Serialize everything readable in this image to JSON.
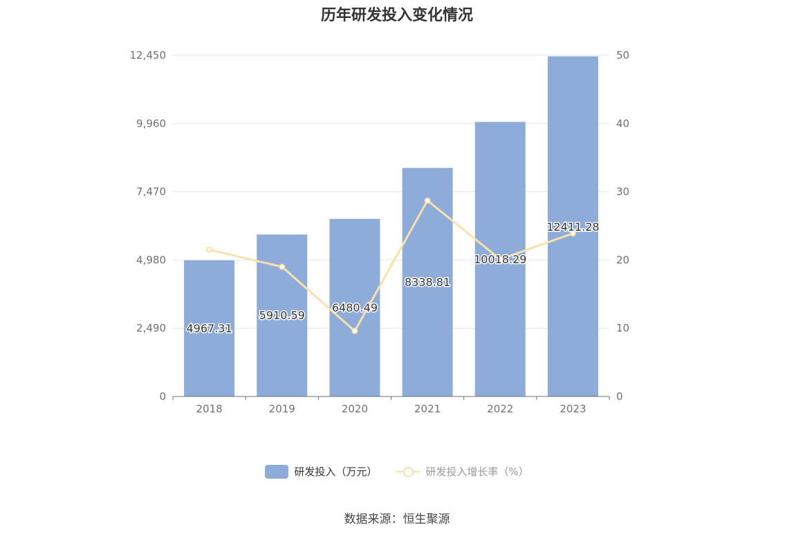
{
  "chart_data": {
    "type": "bar",
    "title": "历年研发投入变化情况",
    "categories": [
      "2018",
      "2019",
      "2020",
      "2021",
      "2022",
      "2023"
    ],
    "series": [
      {
        "name": "研发投入（万元）",
        "type": "bar",
        "axis": "left",
        "values": [
          4967.31,
          5910.59,
          6480.49,
          8338.81,
          10018.29,
          12411.28
        ],
        "labels": [
          "4967.31",
          "5910.59",
          "6480.49",
          "8338.81",
          "10018.29",
          "12411.28"
        ],
        "color": "#8eacd9"
      },
      {
        "name": "研发投入增长率（%）",
        "type": "line",
        "axis": "right",
        "values": [
          21.5,
          19.0,
          9.6,
          28.7,
          20.1,
          23.9
        ],
        "color": "#fbe0a8"
      }
    ],
    "y_left": {
      "ylim": [
        0,
        12450
      ],
      "ticks": [
        "0",
        "2,490",
        "4,980",
        "7,470",
        "9,960",
        "12,450"
      ]
    },
    "y_right": {
      "ylim": [
        0,
        50
      ],
      "ticks": [
        "0",
        "10",
        "20",
        "30",
        "40",
        "50"
      ]
    },
    "grid": true,
    "legend": "bottom-center"
  },
  "source": "数据来源：恒生聚源",
  "colors": {
    "bar": "#8eacd9",
    "line": "#fbe0a8",
    "grid": "#e0e6f1",
    "axis_text": "#6e7079",
    "axis_line": "#6e7079"
  }
}
